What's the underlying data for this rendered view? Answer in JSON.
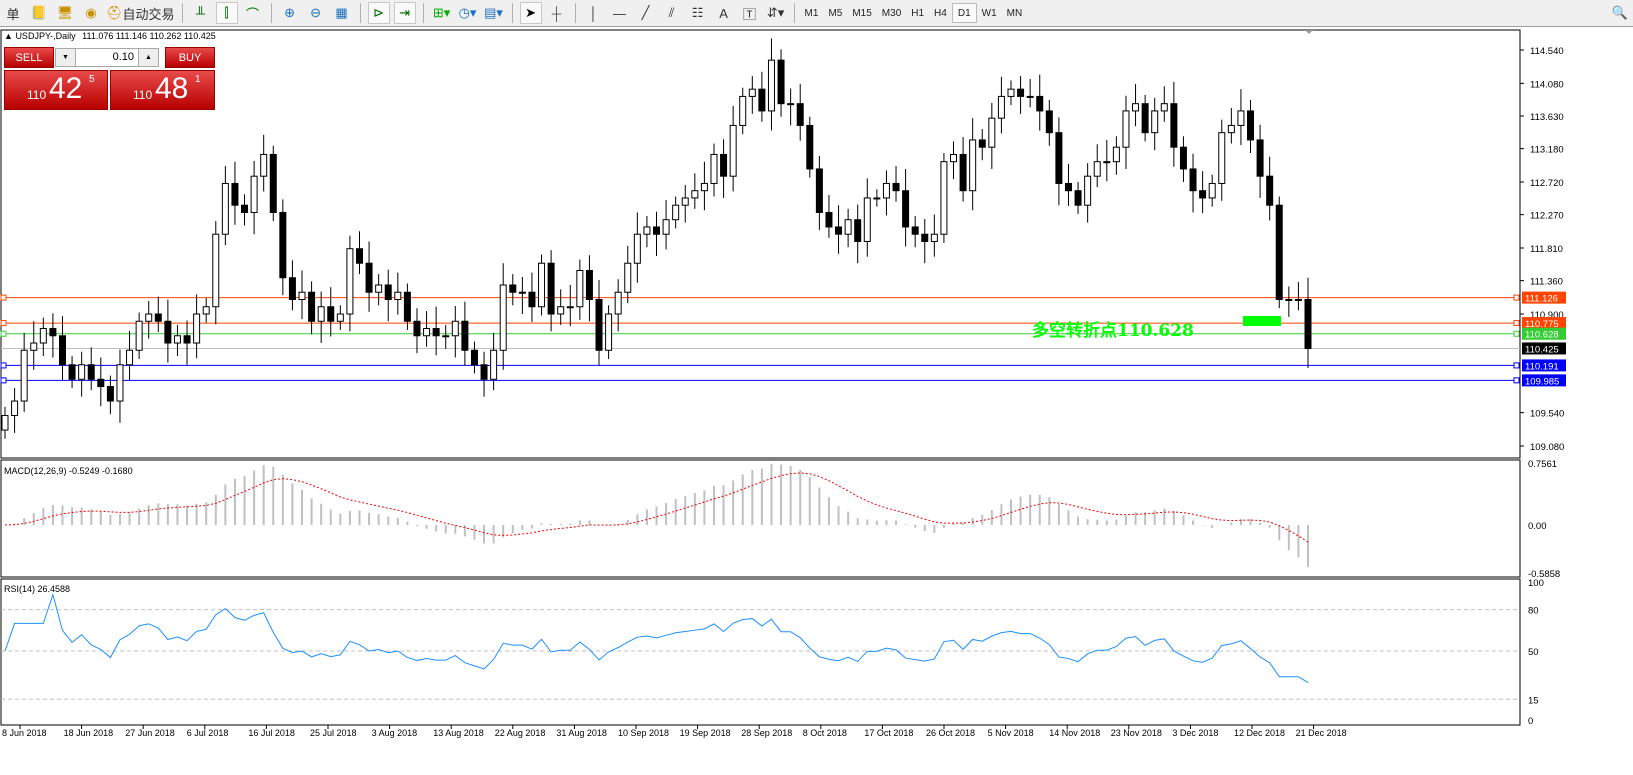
{
  "toolbar": {
    "items": [
      {
        "label": "单",
        "icon": "orders-icon"
      },
      {
        "label": "",
        "icon": "folder-icon"
      },
      {
        "label": "",
        "icon": "navigator-icon"
      },
      {
        "label": "",
        "icon": "signal-icon"
      },
      {
        "label": "自动交易",
        "icon": "auto-trading-icon"
      }
    ],
    "timeframes": [
      "M1",
      "M5",
      "M15",
      "M30",
      "H1",
      "H4",
      "D1",
      "W1",
      "MN"
    ],
    "active_timeframe": "D1",
    "text_tool": "A"
  },
  "chart": {
    "header_symbol": "USDJPY-,Daily",
    "header_ohlc": "111.076 111.146 110.262 110.425",
    "trade": {
      "sell_label": "SELL",
      "buy_label": "BUY",
      "lot": "0.10",
      "sell_prefix": "110",
      "sell_big": "42",
      "sell_sup": "5",
      "buy_prefix": "110",
      "buy_big": "48",
      "buy_sup": "1"
    },
    "annotation": "多空转折点110.628",
    "annotation_color": "#00ff00",
    "price_ticks": [
      "114.540",
      "114.080",
      "113.630",
      "113.180",
      "112.720",
      "112.270",
      "111.810",
      "111.360",
      "110.900",
      "109.540",
      "109.080"
    ],
    "levels": [
      {
        "price": "111.126",
        "color": "#ff4500"
      },
      {
        "price": "110.775",
        "color": "#ff4500"
      },
      {
        "price": "110.628",
        "color": "#32cd32"
      },
      {
        "price": "110.425",
        "color": "#000000"
      },
      {
        "price": "110.191",
        "color": "#0000ff"
      },
      {
        "price": "109.985",
        "color": "#0000ff"
      }
    ]
  },
  "macd": {
    "title": "MACD(12,26,9) -0.5249 -0.1680",
    "ticks": [
      "0.7561",
      "0.00",
      "-0.5858"
    ]
  },
  "rsi": {
    "title": "RSI(14) 26.4588",
    "ticks": [
      "100",
      "80",
      "50",
      "15",
      "0"
    ]
  },
  "dates": [
    "8 Jun 2018",
    "18 Jun 2018",
    "27 Jun 2018",
    "6 Jul 2018",
    "16 Jul 2018",
    "25 Jul 2018",
    "3 Aug 2018",
    "13 Aug 2018",
    "22 Aug 2018",
    "31 Aug 2018",
    "10 Sep 2018",
    "19 Sep 2018",
    "28 Sep 2018",
    "8 Oct 2018",
    "17 Oct 2018",
    "26 Oct 2018",
    "5 Nov 2018",
    "14 Nov 2018",
    "23 Nov 2018",
    "3 Dec 2018",
    "12 Dec 2018",
    "21 Dec 2018"
  ],
  "chart_data": {
    "type": "candlestick",
    "symbol": "USDJPY-",
    "timeframe": "Daily",
    "ylim": [
      109.08,
      114.54
    ],
    "closes": [
      109.5,
      109.7,
      110.4,
      110.5,
      110.7,
      110.6,
      110.2,
      110.0,
      110.2,
      110.0,
      109.9,
      109.7,
      110.2,
      110.4,
      110.8,
      110.9,
      110.8,
      110.5,
      110.6,
      110.5,
      110.9,
      111.0,
      112.0,
      112.7,
      112.4,
      112.3,
      112.8,
      113.1,
      112.3,
      111.4,
      111.1,
      111.2,
      110.8,
      111.0,
      110.8,
      110.9,
      111.8,
      111.6,
      111.2,
      111.3,
      111.1,
      111.2,
      110.8,
      110.6,
      110.7,
      110.6,
      110.6,
      110.8,
      110.4,
      110.2,
      110.0,
      110.4,
      111.3,
      111.2,
      111.2,
      111.0,
      111.6,
      110.9,
      111.0,
      111.0,
      111.5,
      111.1,
      110.4,
      110.9,
      111.2,
      111.6,
      112.0,
      112.1,
      112.0,
      112.2,
      112.4,
      112.5,
      112.6,
      112.7,
      113.1,
      112.8,
      113.5,
      113.9,
      114.0,
      113.7,
      114.4,
      113.8,
      113.8,
      113.5,
      112.9,
      112.3,
      112.1,
      112.0,
      112.2,
      111.9,
      112.5,
      112.5,
      112.7,
      112.6,
      112.1,
      112.0,
      111.9,
      112.0,
      113.0,
      113.1,
      112.6,
      113.3,
      113.2,
      113.6,
      113.9,
      114.0,
      113.9,
      113.9,
      113.7,
      113.4,
      112.7,
      112.6,
      112.4,
      112.8,
      113.0,
      113.0,
      113.2,
      113.7,
      113.8,
      113.4,
      113.7,
      113.8,
      113.2,
      112.9,
      112.6,
      112.5,
      112.7,
      113.4,
      113.5,
      113.7,
      113.3,
      112.8,
      112.4,
      111.1,
      111.1,
      111.1,
      110.425
    ]
  }
}
